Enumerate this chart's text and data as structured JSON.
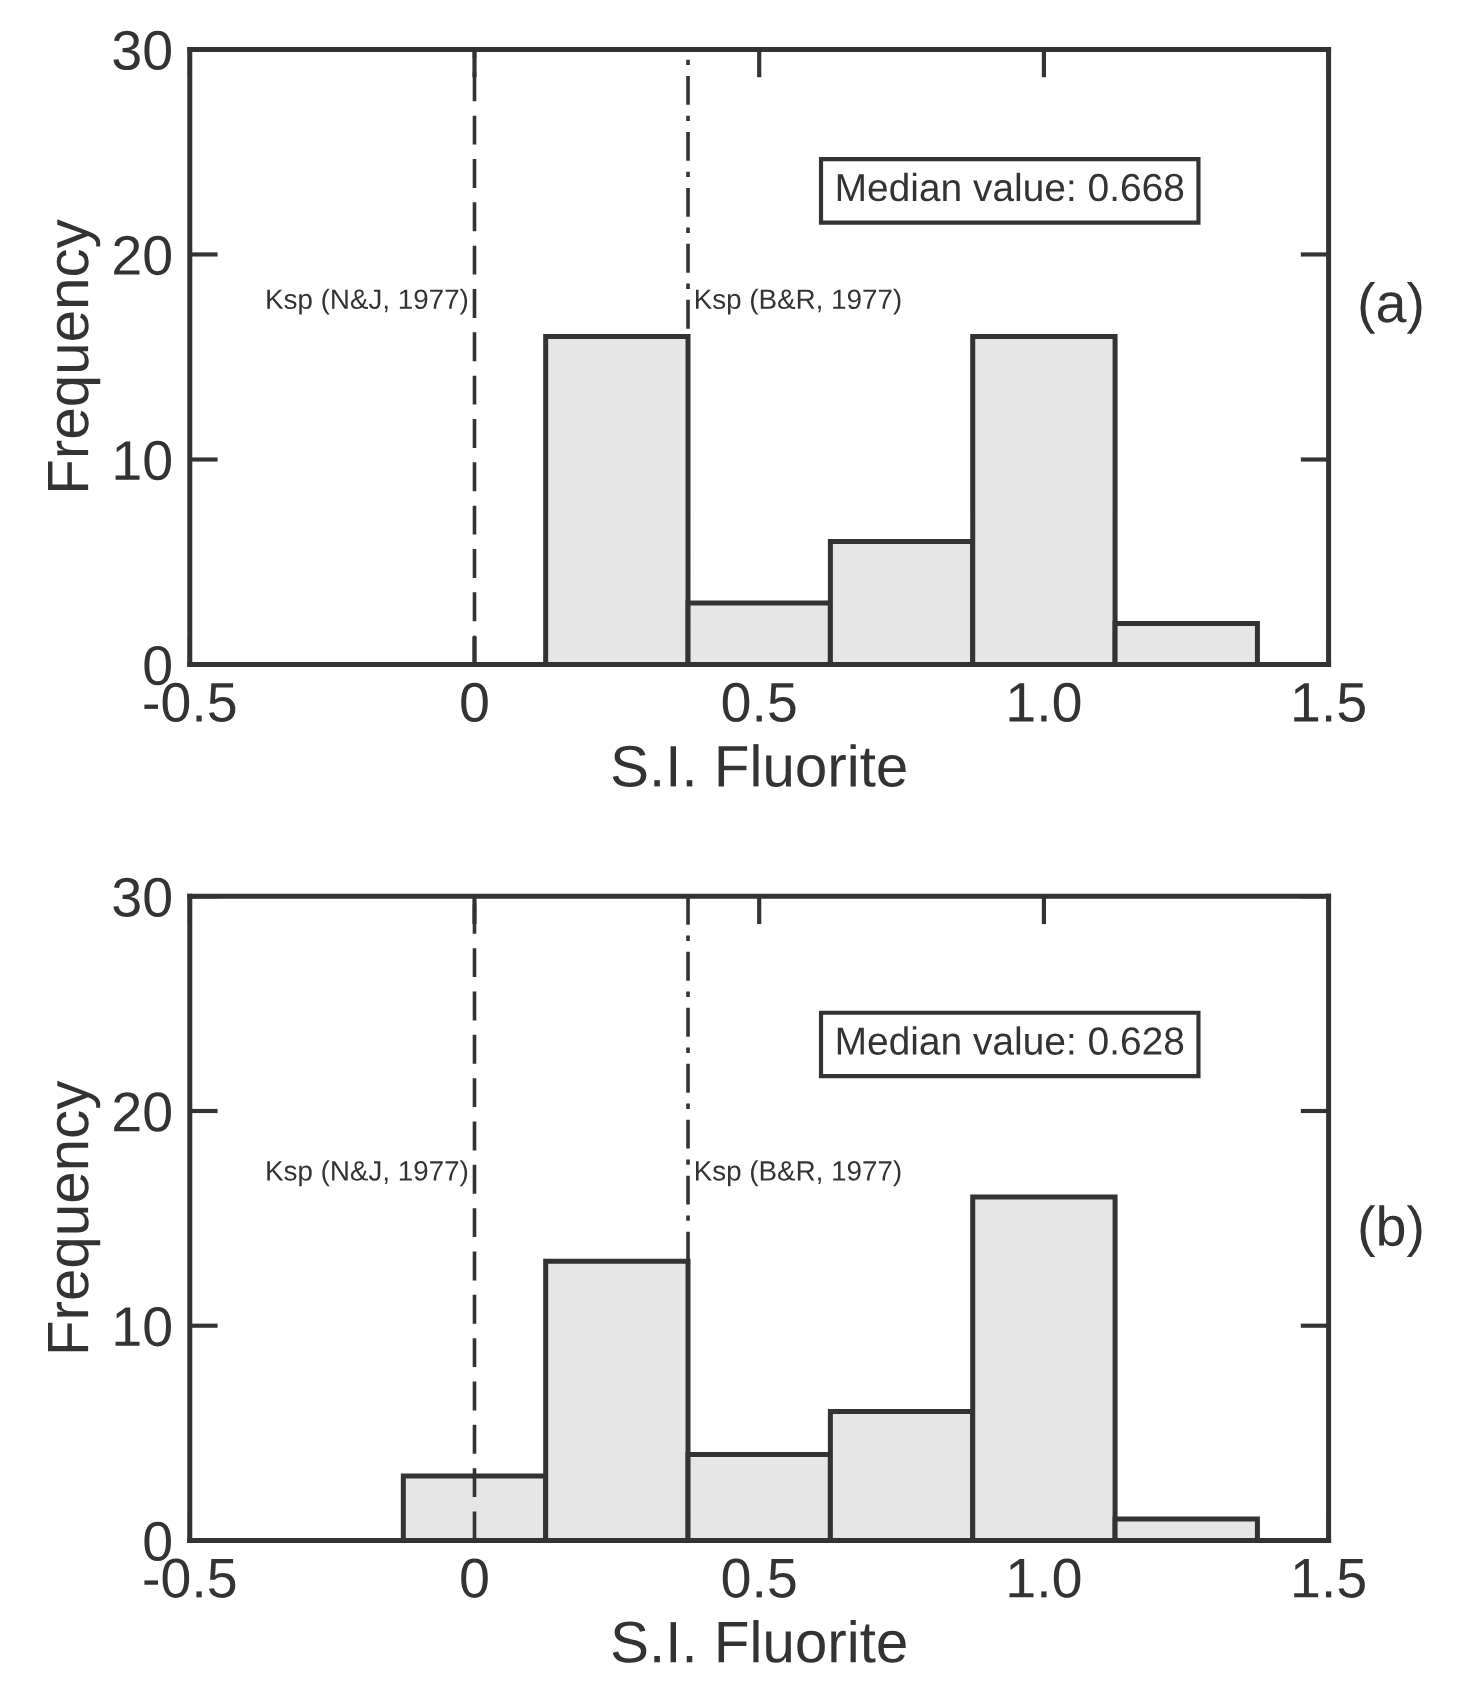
{
  "chart_data": [
    {
      "type": "histogram",
      "xlabel": "S.I. Fluorite",
      "ylabel": "Frequency",
      "bins": [
        0.125,
        0.375,
        0.625,
        0.875,
        1.125,
        1.375
      ],
      "values": [
        16,
        3,
        6,
        16,
        2
      ],
      "color": "#e6e6e6",
      "xlim": [
        -0.5,
        1.5
      ],
      "xticks": [
        -0.5,
        0,
        0.5,
        {
          "value": 1.0,
          "label": "1.0"
        },
        1.5
      ],
      "ylim": [
        0,
        30
      ],
      "yticks": [
        0,
        10,
        20,
        30
      ],
      "ref_lines": [
        {
          "axis": "x",
          "value": 0,
          "label": "Ksp (N&J, 1977)",
          "line_style": "dashed"
        },
        {
          "axis": "x",
          "value": 0.375,
          "label": "Ksp (B&R, 1977)",
          "line_style": "dashdot"
        }
      ],
      "annotations": [
        "Median value: 0.668",
        "(a)"
      ],
      "grid": false
    },
    {
      "type": "histogram",
      "xlabel": "S.I. Fluorite",
      "ylabel": "Frequency",
      "bins": [
        -0.125,
        0.125,
        0.375,
        0.625,
        0.875,
        1.125,
        1.375
      ],
      "values": [
        3,
        13,
        4,
        6,
        16,
        1
      ],
      "color": "#e6e6e6",
      "xlim": [
        -0.5,
        1.5
      ],
      "xticks": [
        -0.5,
        0,
        0.5,
        {
          "value": 1.0,
          "label": "1.0"
        },
        1.5
      ],
      "ylim": [
        0,
        30
      ],
      "yticks": [
        0,
        10,
        20,
        30
      ],
      "ref_lines": [
        {
          "axis": "x",
          "value": 0,
          "label": "Ksp (N&J, 1977)",
          "line_style": "dashed"
        },
        {
          "axis": "x",
          "value": 0.375,
          "label": "Ksp (B&R, 1977)",
          "line_style": "dashdot"
        }
      ],
      "annotations": [
        "Median value: 0.628",
        "(b)"
      ],
      "grid": false
    }
  ]
}
